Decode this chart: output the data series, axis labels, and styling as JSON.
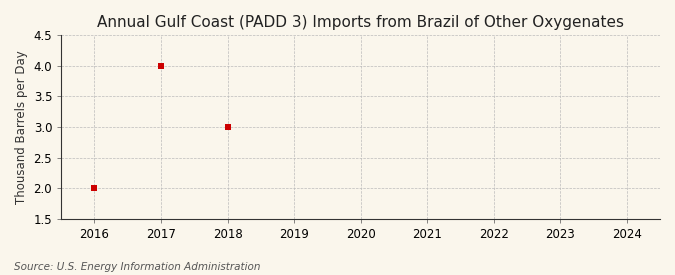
{
  "title": "Annual Gulf Coast (PADD 3) Imports from Brazil of Other Oxygenates",
  "ylabel": "Thousand Barrels per Day",
  "source": "Source: U.S. Energy Information Administration",
  "x_data": [
    2016,
    2017,
    2018
  ],
  "y_data": [
    2.0,
    4.0,
    3.0
  ],
  "marker_color": "#cc0000",
  "marker_style": "s",
  "marker_size": 4,
  "xlim": [
    2015.5,
    2024.5
  ],
  "ylim": [
    1.5,
    4.5
  ],
  "yticks": [
    1.5,
    2.0,
    2.5,
    3.0,
    3.5,
    4.0,
    4.5
  ],
  "xticks": [
    2016,
    2017,
    2018,
    2019,
    2020,
    2021,
    2022,
    2023,
    2024
  ],
  "background_color": "#faf6ec",
  "grid_color": "#bbbbbb",
  "title_fontsize": 11,
  "label_fontsize": 8.5,
  "tick_fontsize": 8.5,
  "source_fontsize": 7.5
}
